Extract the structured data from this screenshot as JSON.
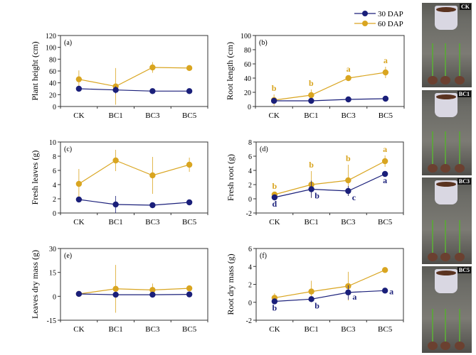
{
  "legend": {
    "series": [
      {
        "name": "30 DAP",
        "color": "#1a1f7a"
      },
      {
        "name": "60 DAP",
        "color": "#d9a520"
      }
    ]
  },
  "photos": [
    {
      "label": "CK"
    },
    {
      "label": "BC1"
    },
    {
      "label": "BC3"
    },
    {
      "label": "BC5"
    }
  ],
  "chart_data": [
    {
      "type": "line",
      "panel": "(a)",
      "ylabel": "Plant height (cm)",
      "categories": [
        "CK",
        "BC1",
        "BC3",
        "BC5"
      ],
      "ylim": [
        0,
        120
      ],
      "yticks": [
        0,
        20,
        40,
        60,
        80,
        100,
        120
      ],
      "series": [
        {
          "name": "30 DAP",
          "values": [
            30,
            28,
            26,
            26
          ],
          "errors": [
            3,
            6,
            2,
            4
          ],
          "letters": []
        },
        {
          "name": "60 DAP",
          "values": [
            46,
            34,
            66,
            65
          ],
          "errors": [
            15,
            31,
            9,
            2
          ],
          "letters": []
        }
      ]
    },
    {
      "type": "line",
      "panel": "(b)",
      "ylabel": "Root length (cm)",
      "categories": [
        "CK",
        "BC1",
        "BC3",
        "BC5"
      ],
      "ylim": [
        0,
        100
      ],
      "yticks": [
        0,
        20,
        40,
        60,
        80,
        100
      ],
      "series": [
        {
          "name": "30 DAP",
          "values": [
            8,
            8,
            10,
            11
          ],
          "errors": [
            1,
            1,
            1,
            1
          ],
          "letters": []
        },
        {
          "name": "60 DAP",
          "values": [
            9,
            16,
            40,
            48
          ],
          "errors": [
            8,
            8,
            4,
            8
          ],
          "letters": [
            "b",
            "b",
            "a",
            "a"
          ]
        }
      ]
    },
    {
      "type": "line",
      "panel": "(c)",
      "ylabel": "Fresh leaves (g)",
      "categories": [
        "CK",
        "BC1",
        "BC3",
        "BC5"
      ],
      "ylim": [
        0,
        10
      ],
      "yticks": [
        0,
        2,
        4,
        6,
        8,
        10
      ],
      "series": [
        {
          "name": "30 DAP",
          "values": [
            1.9,
            1.2,
            1.1,
            1.5
          ],
          "errors": [
            0.4,
            1.2,
            0.1,
            0.1
          ],
          "letters": []
        },
        {
          "name": "60 DAP",
          "values": [
            4.1,
            7.4,
            5.3,
            6.8
          ],
          "errors": [
            2.1,
            1.5,
            2.6,
            1.0
          ],
          "letters": []
        }
      ]
    },
    {
      "type": "line",
      "panel": "(d)",
      "ylabel": "Fresh root (g)",
      "categories": [
        "CK",
        "BC1",
        "BC3",
        "BC5"
      ],
      "ylim": [
        -2,
        8
      ],
      "yticks": [
        -2,
        0,
        2,
        4,
        6,
        8
      ],
      "series": [
        {
          "name": "30 DAP",
          "values": [
            0.2,
            1.35,
            1.1,
            3.5
          ],
          "errors": [
            0.1,
            1.2,
            0.7,
            0.1
          ],
          "letters": [
            "d",
            "b",
            "c",
            "a"
          ]
        },
        {
          "name": "60 DAP",
          "values": [
            0.6,
            2.0,
            2.6,
            5.3
          ],
          "errors": [
            0.3,
            1.9,
            2.2,
            0.8
          ],
          "letters": [
            "b",
            "b",
            "b",
            "a"
          ]
        }
      ]
    },
    {
      "type": "line",
      "panel": "(e)",
      "ylabel": "Leaves dry mass (g)",
      "categories": [
        "CK",
        "BC1",
        "BC3",
        "BC5"
      ],
      "ylim": [
        -15,
        30
      ],
      "yticks": [
        -15,
        0,
        15,
        30
      ],
      "series": [
        {
          "name": "30 DAP",
          "values": [
            1.5,
            1.0,
            1.0,
            1.2
          ],
          "errors": [
            0.2,
            0.3,
            0.3,
            0.3
          ],
          "letters": []
        },
        {
          "name": "60 DAP",
          "values": [
            1.5,
            4.7,
            4.0,
            5.0
          ],
          "errors": [
            0.3,
            15,
            4,
            0.5
          ],
          "letters": []
        }
      ]
    },
    {
      "type": "line",
      "panel": "(f)",
      "ylabel": "Root dry mass (g)",
      "categories": [
        "CK",
        "BC1",
        "BC3",
        "BC5"
      ],
      "ylim": [
        -2,
        6
      ],
      "yticks": [
        -2,
        0,
        2,
        4,
        6
      ],
      "series": [
        {
          "name": "30 DAP",
          "values": [
            0.1,
            0.35,
            1.1,
            1.3
          ],
          "errors": [
            0.1,
            0.3,
            0.8,
            0.1
          ],
          "letters": [
            "b",
            "b",
            "a",
            "a"
          ]
        },
        {
          "name": "60 DAP",
          "values": [
            0.5,
            1.2,
            1.8,
            3.6
          ],
          "errors": [
            0.5,
            1.2,
            1.6,
            0.3
          ],
          "letters": []
        }
      ]
    }
  ]
}
